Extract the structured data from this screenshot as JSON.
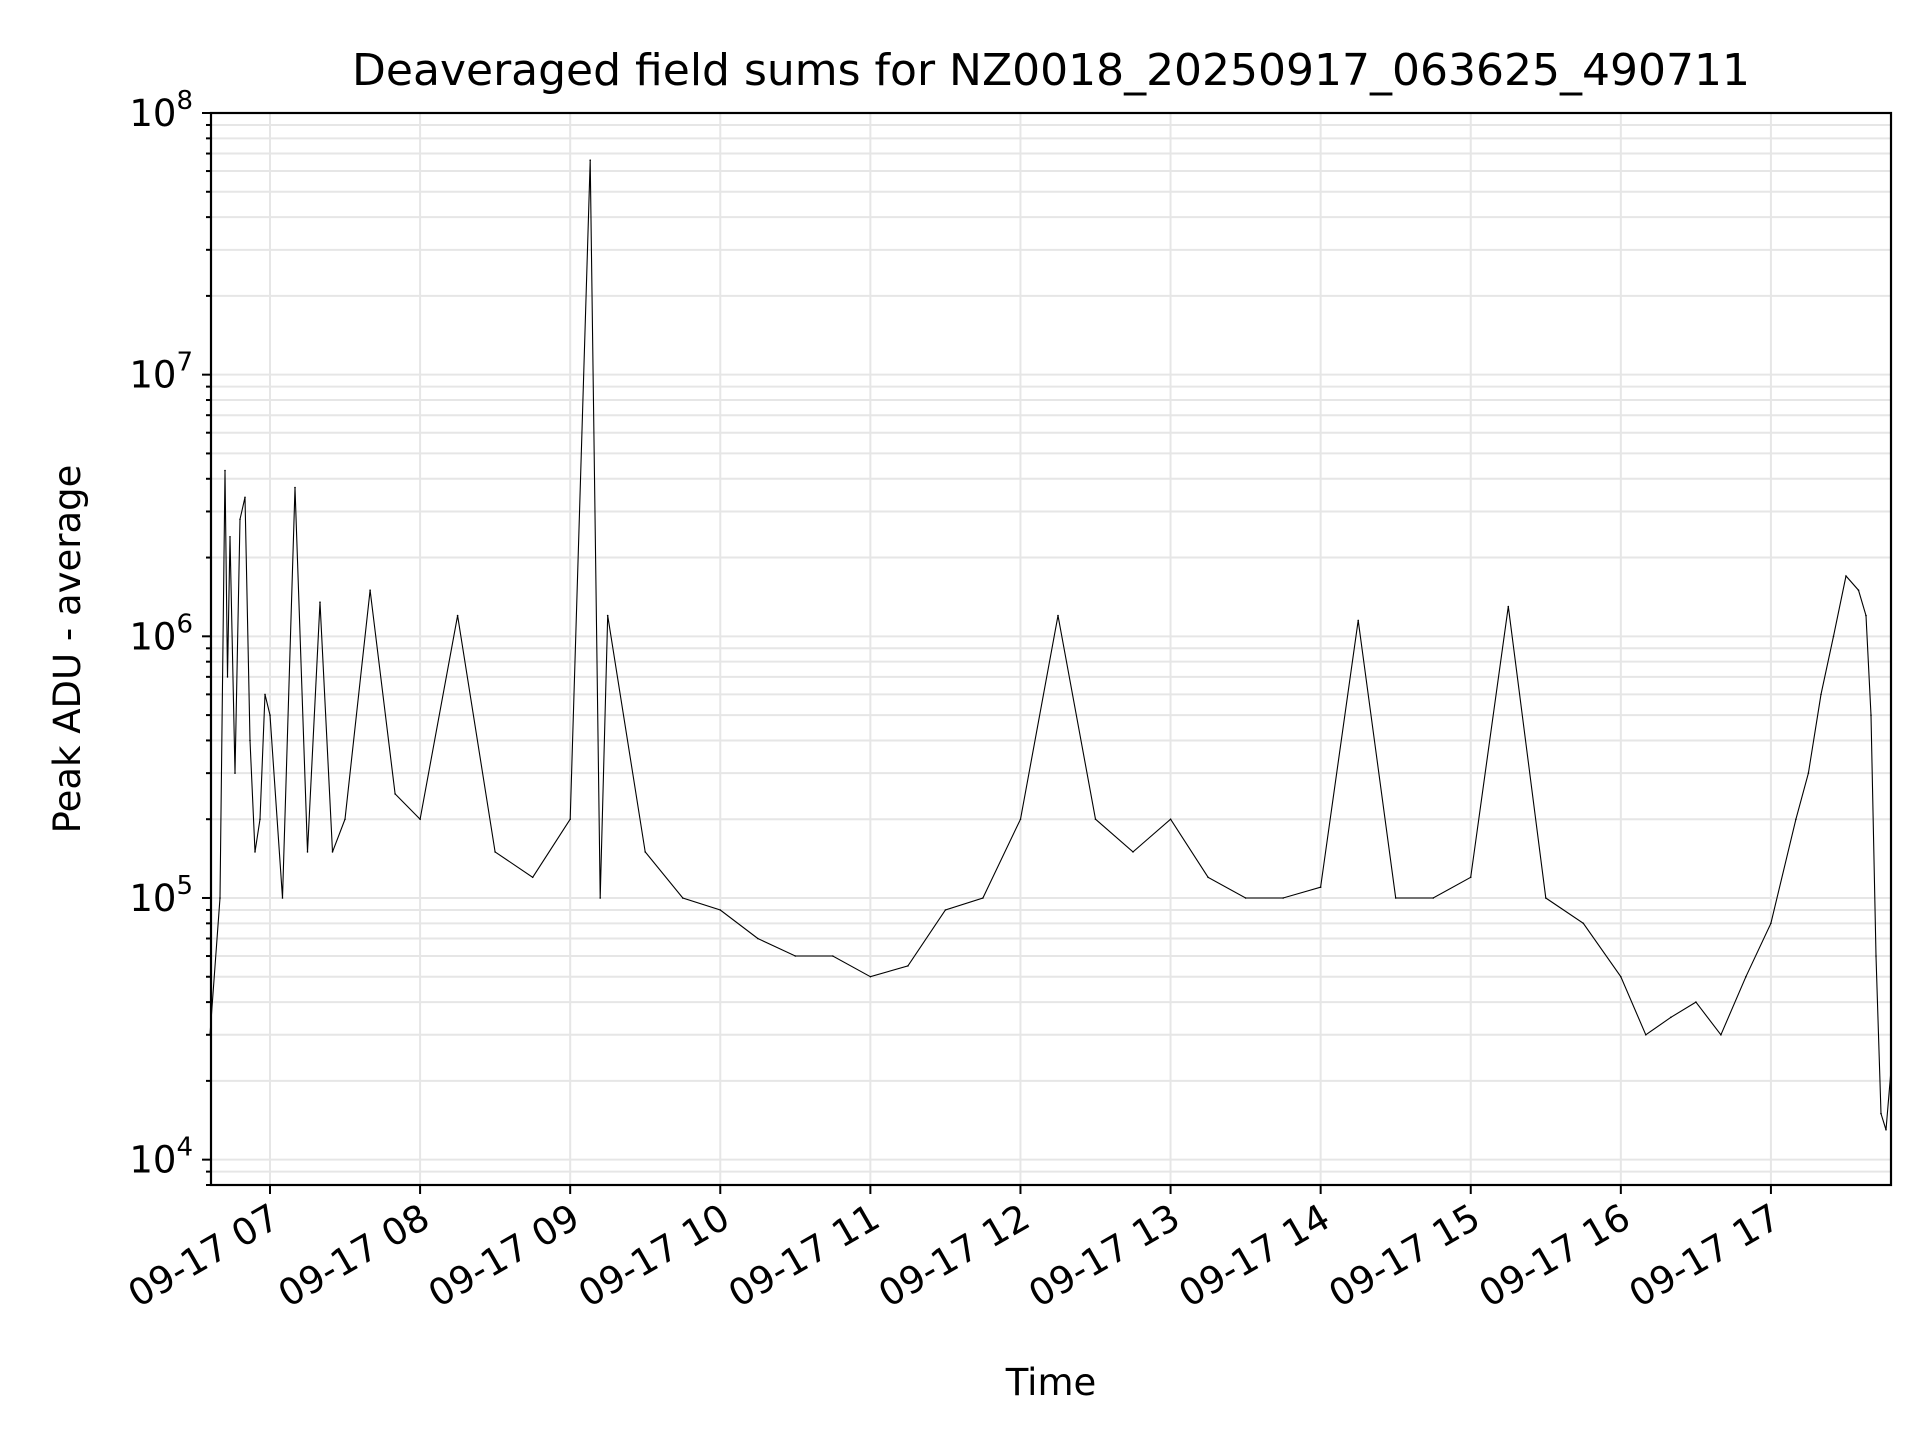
{
  "chart_data": {
    "type": "line",
    "title": "Deaveraged field sums for NZ0018_20250917_063625_490711",
    "xlabel": "Time",
    "ylabel": "Peak ADU - average",
    "yscale": "log",
    "ylim": [
      8000,
      100000000
    ],
    "xlim": [
      "2025-09-17T06:36:25",
      "2025-09-17T17:48:00"
    ],
    "grid": true,
    "grid_minor": true,
    "line_color": "#000000",
    "x_ticks": [
      {
        "value": "2025-09-17T07:00:00",
        "label": "09-17 07"
      },
      {
        "value": "2025-09-17T08:00:00",
        "label": "09-17 08"
      },
      {
        "value": "2025-09-17T09:00:00",
        "label": "09-17 09"
      },
      {
        "value": "2025-09-17T10:00:00",
        "label": "09-17 10"
      },
      {
        "value": "2025-09-17T11:00:00",
        "label": "09-17 11"
      },
      {
        "value": "2025-09-17T12:00:00",
        "label": "09-17 12"
      },
      {
        "value": "2025-09-17T13:00:00",
        "label": "09-17 13"
      },
      {
        "value": "2025-09-17T14:00:00",
        "label": "09-17 14"
      },
      {
        "value": "2025-09-17T15:00:00",
        "label": "09-17 15"
      },
      {
        "value": "2025-09-17T16:00:00",
        "label": "09-17 16"
      },
      {
        "value": "2025-09-17T17:00:00",
        "label": "09-17 17"
      }
    ],
    "y_ticks": [
      {
        "value": 10000,
        "base": "10",
        "exp": "4"
      },
      {
        "value": 100000,
        "base": "10",
        "exp": "5"
      },
      {
        "value": 1000000,
        "base": "10",
        "exp": "6"
      },
      {
        "value": 10000000,
        "base": "10",
        "exp": "7"
      },
      {
        "value": 100000000,
        "base": "10",
        "exp": "8"
      }
    ],
    "series": [
      {
        "x": [
          "2025-09-17T06:36",
          "2025-09-17T06:40",
          "2025-09-17T06:42",
          "2025-09-17T06:43",
          "2025-09-17T06:44",
          "2025-09-17T06:46",
          "2025-09-17T06:48",
          "2025-09-17T06:50",
          "2025-09-17T06:52",
          "2025-09-17T06:54",
          "2025-09-17T06:56",
          "2025-09-17T06:58",
          "2025-09-17T07:00",
          "2025-09-17T07:05",
          "2025-09-17T07:10",
          "2025-09-17T07:15",
          "2025-09-17T07:20",
          "2025-09-17T07:25",
          "2025-09-17T07:30",
          "2025-09-17T07:40",
          "2025-09-17T07:50",
          "2025-09-17T08:00",
          "2025-09-17T08:15",
          "2025-09-17T08:30",
          "2025-09-17T08:45",
          "2025-09-17T09:00",
          "2025-09-17T09:08",
          "2025-09-17T09:12",
          "2025-09-17T09:15",
          "2025-09-17T09:30",
          "2025-09-17T09:45",
          "2025-09-17T10:00",
          "2025-09-17T10:15",
          "2025-09-17T10:30",
          "2025-09-17T10:45",
          "2025-09-17T11:00",
          "2025-09-17T11:15",
          "2025-09-17T11:30",
          "2025-09-17T11:45",
          "2025-09-17T12:00",
          "2025-09-17T12:15",
          "2025-09-17T12:30",
          "2025-09-17T12:45",
          "2025-09-17T13:00",
          "2025-09-17T13:15",
          "2025-09-17T13:30",
          "2025-09-17T13:45",
          "2025-09-17T14:00",
          "2025-09-17T14:15",
          "2025-09-17T14:30",
          "2025-09-17T14:45",
          "2025-09-17T15:00",
          "2025-09-17T15:15",
          "2025-09-17T15:30",
          "2025-09-17T15:45",
          "2025-09-17T16:00",
          "2025-09-17T16:10",
          "2025-09-17T16:20",
          "2025-09-17T16:30",
          "2025-09-17T16:40",
          "2025-09-17T16:50",
          "2025-09-17T17:00",
          "2025-09-17T17:10",
          "2025-09-17T17:15",
          "2025-09-17T17:20",
          "2025-09-17T17:25",
          "2025-09-17T17:30",
          "2025-09-17T17:35",
          "2025-09-17T17:38",
          "2025-09-17T17:40",
          "2025-09-17T17:42",
          "2025-09-17T17:44",
          "2025-09-17T17:46",
          "2025-09-17T17:48"
        ],
        "y": [
          30000,
          100000,
          4300000,
          700000,
          2400000,
          300000,
          2800000,
          3400000,
          400000,
          150000,
          200000,
          600000,
          500000,
          100000,
          3700000,
          150000,
          1350000,
          150000,
          200000,
          1500000,
          250000,
          200000,
          1200000,
          150000,
          120000,
          200000,
          66000000,
          100000,
          1200000,
          150000,
          100000,
          90000,
          70000,
          60000,
          60000,
          50000,
          55000,
          90000,
          100000,
          200000,
          1200000,
          200000,
          150000,
          200000,
          120000,
          100000,
          100000,
          110000,
          1150000,
          100000,
          100000,
          120000,
          1300000,
          100000,
          80000,
          50000,
          30000,
          35000,
          40000,
          30000,
          50000,
          80000,
          200000,
          300000,
          600000,
          1000000,
          1700000,
          1500000,
          1200000,
          500000,
          60000,
          15000,
          13000,
          22000
        ]
      }
    ]
  }
}
